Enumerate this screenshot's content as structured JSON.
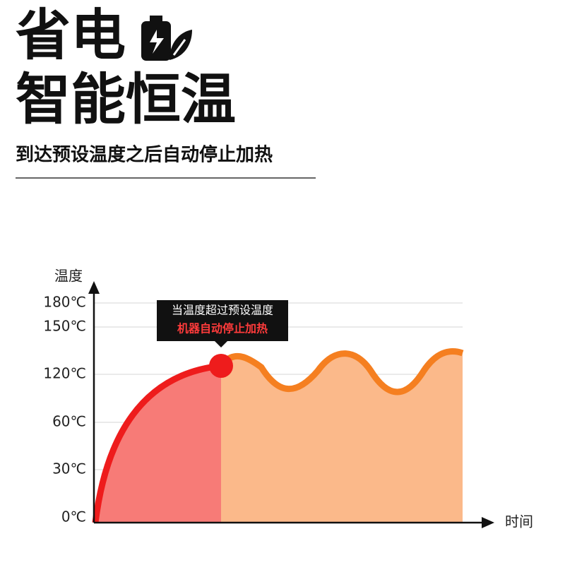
{
  "header": {
    "title_line1": "省电",
    "title_line2": "智能恒温",
    "subtitle": "到达预设温度之后自动停止加热"
  },
  "diagram": {
    "y_axis_label": "温度",
    "x_axis_label": "时间",
    "y_tick_labels": [
      "0℃",
      "30℃",
      "60℃",
      "120℃",
      "150℃",
      "180℃"
    ],
    "callout": {
      "line1": "当温度超过预设温度",
      "line2": "机器自动停止加热"
    }
  }
}
